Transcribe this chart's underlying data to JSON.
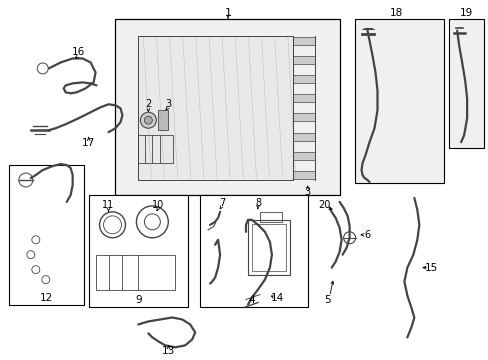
{
  "bg_color": "#ffffff",
  "lc": "#444444",
  "bc": "#000000",
  "fig_width": 4.89,
  "fig_height": 3.6,
  "dpi": 100
}
